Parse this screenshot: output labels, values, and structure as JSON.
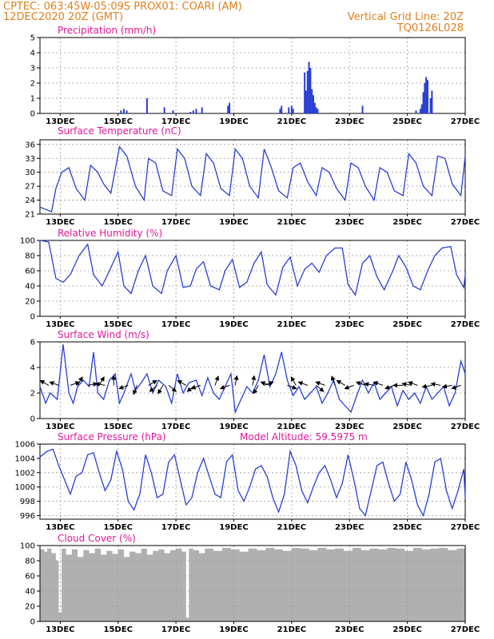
{
  "header": {
    "line1": "CPTEC:   063:45W-05:09S   PROX01: COARI (AM)",
    "line2": "12DEC2020 20Z (GMT)",
    "grid_note": "Vertical Grid Line: 20Z",
    "model_id": "TQ0126L028"
  },
  "colors": {
    "header": "#e0801c",
    "titles": "#e0189b",
    "line": "#2a3fd6",
    "bars": "#2a3fd6",
    "cloud": "#b0b0b0",
    "grid": "#999999"
  },
  "x_axis": {
    "range_days": [
      12.3,
      27.0
    ],
    "tick_days": [
      13,
      15,
      17,
      19,
      21,
      23,
      25,
      27
    ],
    "tick_labels": [
      "13DEC",
      "15DEC",
      "17DEC",
      "19DEC",
      "21DEC",
      "23DEC",
      "25DEC",
      "27DEC"
    ]
  },
  "chart_data": [
    {
      "type": "bar",
      "title": "Precipitation (mm/h)",
      "ylim": [
        0,
        5
      ],
      "yticks": [
        0,
        1,
        2,
        3,
        4,
        5
      ],
      "x": [
        15.1,
        15.2,
        15.3,
        16.0,
        16.6,
        16.9,
        17.5,
        17.6,
        17.7,
        17.9,
        18.8,
        18.85,
        20.6,
        20.65,
        20.9,
        21.0,
        21.05,
        21.45,
        21.5,
        21.55,
        21.6,
        21.65,
        21.7,
        21.75,
        21.8,
        21.85,
        21.9,
        23.45,
        25.3,
        25.45,
        25.5,
        25.55,
        25.6,
        25.65,
        25.7,
        25.8,
        25.85
      ],
      "values": [
        0.2,
        0.3,
        0.2,
        1.0,
        0.4,
        0.2,
        0.1,
        0.2,
        0.3,
        0.4,
        0.5,
        0.7,
        0.3,
        0.5,
        0.4,
        0.5,
        0.3,
        2.7,
        1.5,
        2.8,
        3.4,
        3.0,
        1.6,
        1.2,
        0.7,
        0.4,
        0.3,
        0.5,
        0.2,
        0.3,
        0.6,
        1.4,
        2.0,
        2.4,
        2.2,
        1.0,
        1.5
      ]
    },
    {
      "type": "line",
      "title": "Surface Temperature (nC)",
      "ylim": [
        21,
        37
      ],
      "yticks": [
        21,
        24,
        27,
        30,
        33,
        36
      ],
      "x": [
        12.3,
        12.7,
        12.85,
        13.05,
        13.3,
        13.55,
        13.85,
        14.05,
        14.3,
        14.5,
        14.75,
        15.05,
        15.3,
        15.6,
        15.9,
        16.05,
        16.3,
        16.55,
        16.85,
        17.05,
        17.3,
        17.55,
        17.85,
        18.05,
        18.3,
        18.55,
        18.85,
        19.05,
        19.3,
        19.55,
        19.85,
        20.05,
        20.3,
        20.55,
        20.85,
        21.05,
        21.3,
        21.55,
        21.85,
        22.05,
        22.3,
        22.55,
        22.85,
        23.05,
        23.3,
        23.55,
        23.85,
        24.05,
        24.3,
        24.55,
        24.85,
        25.05,
        25.3,
        25.55,
        25.85,
        26.05,
        26.3,
        26.55,
        26.85,
        27.0
      ],
      "values": [
        22.5,
        21.5,
        26.5,
        30.0,
        31.0,
        26.5,
        24.0,
        31.5,
        30.0,
        27.5,
        25.5,
        35.5,
        33.5,
        27.0,
        24.0,
        33.0,
        32.0,
        26.0,
        25.0,
        35.0,
        33.0,
        27.0,
        25.0,
        34.0,
        32.0,
        26.5,
        25.0,
        35.0,
        33.0,
        27.0,
        24.5,
        35.0,
        31.0,
        26.0,
        24.5,
        31.0,
        32.0,
        28.0,
        25.0,
        31.0,
        30.0,
        26.5,
        24.0,
        32.0,
        31.0,
        27.0,
        24.0,
        31.0,
        30.0,
        26.0,
        25.0,
        34.0,
        32.0,
        27.0,
        25.0,
        33.5,
        33.0,
        27.5,
        25.0,
        33.5
      ]
    },
    {
      "type": "line",
      "title": "Relative Humidity (%)",
      "ylim": [
        0,
        100
      ],
      "yticks": [
        0,
        20,
        40,
        60,
        80,
        100
      ],
      "x": [
        12.3,
        12.6,
        12.85,
        13.1,
        13.35,
        13.65,
        13.95,
        14.15,
        14.45,
        14.7,
        15.0,
        15.2,
        15.45,
        15.7,
        15.95,
        16.2,
        16.5,
        16.7,
        17.0,
        17.25,
        17.5,
        17.7,
        17.95,
        18.2,
        18.5,
        18.7,
        18.95,
        19.2,
        19.45,
        19.7,
        19.95,
        20.15,
        20.45,
        20.7,
        20.95,
        21.2,
        21.45,
        21.7,
        21.95,
        22.2,
        22.5,
        22.75,
        22.95,
        23.2,
        23.45,
        23.7,
        23.95,
        24.2,
        24.5,
        24.7,
        24.95,
        25.2,
        25.45,
        25.7,
        25.95,
        26.2,
        26.5,
        26.7,
        26.95,
        27.0
      ],
      "values": [
        100,
        98,
        50,
        45,
        55,
        80,
        95,
        55,
        40,
        60,
        85,
        40,
        30,
        60,
        80,
        40,
        30,
        60,
        80,
        38,
        40,
        62,
        72,
        40,
        35,
        60,
        75,
        38,
        45,
        70,
        85,
        42,
        28,
        65,
        78,
        40,
        62,
        70,
        58,
        80,
        90,
        90,
        42,
        28,
        70,
        80,
        52,
        35,
        60,
        80,
        65,
        40,
        35,
        60,
        80,
        90,
        92,
        55,
        38,
        55
      ]
    },
    {
      "type": "line",
      "title": "Surface Wind (m/s)",
      "ylim": [
        0,
        6
      ],
      "yticks": [
        0,
        2,
        4,
        6
      ],
      "x": [
        12.3,
        12.5,
        12.65,
        12.9,
        13.1,
        13.3,
        13.45,
        13.6,
        13.8,
        14.0,
        14.15,
        14.3,
        14.5,
        14.7,
        14.9,
        15.05,
        15.2,
        15.45,
        15.6,
        15.8,
        16.0,
        16.2,
        16.4,
        16.65,
        16.85,
        17.05,
        17.25,
        17.45,
        17.7,
        17.9,
        18.1,
        18.3,
        18.5,
        18.7,
        18.9,
        19.05,
        19.25,
        19.45,
        19.65,
        19.85,
        20.05,
        20.25,
        20.45,
        20.65,
        20.85,
        21.05,
        21.25,
        21.45,
        21.65,
        21.85,
        22.05,
        22.25,
        22.45,
        22.65,
        22.85,
        23.05,
        23.25,
        23.45,
        23.65,
        23.85,
        24.05,
        24.25,
        24.45,
        24.65,
        24.85,
        25.05,
        25.25,
        25.45,
        25.65,
        25.85,
        26.05,
        26.25,
        26.45,
        26.65,
        26.85,
        27.0
      ],
      "values": [
        2.5,
        1.2,
        2.0,
        1.5,
        5.8,
        2.0,
        1.2,
        2.5,
        3.0,
        2.5,
        5.2,
        2.0,
        1.5,
        3.0,
        3.5,
        1.2,
        2.0,
        3.5,
        2.2,
        2.8,
        3.5,
        2.0,
        3.0,
        2.5,
        1.2,
        3.5,
        2.0,
        2.8,
        3.0,
        1.8,
        3.2,
        2.0,
        1.5,
        2.5,
        3.5,
        0.5,
        1.5,
        2.5,
        2.0,
        3.0,
        5.0,
        2.5,
        3.5,
        5.2,
        3.0,
        1.8,
        2.5,
        1.5,
        2.0,
        2.5,
        1.2,
        2.0,
        3.0,
        1.5,
        1.0,
        0.5,
        1.8,
        3.0,
        2.0,
        2.8,
        1.5,
        2.0,
        2.5,
        1.0,
        2.2,
        1.5,
        2.0,
        1.2,
        2.5,
        1.5,
        2.0,
        2.5,
        1.0,
        2.0,
        4.5,
        3.5
      ],
      "vectors": {
        "x": [
          12.6,
          12.95,
          13.35,
          13.6,
          13.95,
          14.35,
          14.55,
          14.85,
          15.35,
          15.65,
          16.05,
          16.35,
          16.55,
          16.75,
          17.35,
          17.65,
          17.85,
          18.35,
          18.85,
          19.05,
          19.65,
          19.85,
          20.05,
          20.25,
          20.85,
          21.15,
          21.55,
          21.85,
          22.15,
          22.5,
          22.85,
          23.15,
          23.55,
          23.85,
          24.15,
          24.55,
          24.85,
          25.15,
          25.35,
          25.85,
          26.15,
          26.55,
          26.85
        ]
      }
    },
    {
      "type": "line",
      "title": "Surface Pressure (hPa)",
      "subtitle": "Model Altitude: 59.5975 m",
      "ylim": [
        995.5,
        1006
      ],
      "yticks": [
        996,
        998,
        1000,
        1002,
        1004,
        1006
      ],
      "x": [
        12.3,
        12.55,
        12.75,
        12.95,
        13.15,
        13.35,
        13.55,
        13.75,
        13.95,
        14.15,
        14.35,
        14.55,
        14.75,
        14.95,
        15.15,
        15.35,
        15.55,
        15.75,
        15.95,
        16.15,
        16.35,
        16.55,
        16.75,
        16.95,
        17.15,
        17.35,
        17.55,
        17.75,
        17.95,
        18.15,
        18.35,
        18.55,
        18.75,
        18.95,
        19.15,
        19.35,
        19.55,
        19.75,
        19.95,
        20.15,
        20.35,
        20.55,
        20.75,
        20.95,
        21.15,
        21.35,
        21.55,
        21.75,
        21.95,
        22.15,
        22.35,
        22.55,
        22.75,
        22.95,
        23.15,
        23.35,
        23.55,
        23.75,
        23.95,
        24.15,
        24.35,
        24.55,
        24.75,
        24.95,
        25.15,
        25.35,
        25.55,
        25.75,
        25.95,
        26.15,
        26.35,
        26.55,
        26.75,
        26.95,
        27.0
      ],
      "values": [
        1004.2,
        1005.0,
        1005.3,
        1003.0,
        1001.0,
        999.0,
        1001.5,
        1002.0,
        1004.5,
        1004.8,
        1002.0,
        999.5,
        1001.0,
        1005.0,
        1002.5,
        998.0,
        996.8,
        999.0,
        1004.5,
        1002.0,
        998.5,
        999.0,
        1003.5,
        1004.5,
        1001.0,
        997.5,
        998.5,
        1002.0,
        1004.0,
        1001.5,
        999.0,
        998.5,
        1003.5,
        1004.5,
        999.5,
        998.0,
        1000.0,
        1002.5,
        1003.0,
        1001.5,
        998.5,
        996.5,
        999.0,
        1005.0,
        1003.0,
        999.5,
        997.8,
        1000.0,
        1002.0,
        1003.0,
        1001.0,
        998.5,
        1000.5,
        1004.5,
        1001.0,
        997.0,
        996.0,
        999.5,
        1003.0,
        1003.5,
        1000.5,
        998.0,
        999.0,
        1003.5,
        1001.0,
        997.5,
        996.0,
        999.0,
        1003.5,
        1004.0,
        999.5,
        997.0,
        999.5,
        1002.5,
        998.5
      ]
    },
    {
      "type": "area",
      "title": "Cloud Cover (%)",
      "ylim": [
        0,
        100
      ],
      "yticks": [
        0,
        20,
        40,
        60,
        80,
        100
      ],
      "x": [
        12.3,
        12.45,
        12.55,
        12.7,
        12.85,
        12.95,
        13.05,
        13.2,
        13.4,
        13.6,
        13.8,
        14.0,
        14.2,
        14.4,
        14.6,
        14.8,
        15.0,
        15.2,
        15.4,
        15.6,
        15.8,
        16.0,
        16.2,
        16.4,
        16.6,
        16.8,
        17.0,
        17.2,
        17.35,
        17.45,
        17.6,
        17.8,
        18.0,
        18.3,
        18.6,
        18.9,
        19.2,
        19.5,
        19.8,
        20.1,
        20.4,
        20.7,
        21.0,
        21.3,
        21.6,
        21.9,
        22.2,
        22.5,
        22.8,
        23.1,
        23.4,
        23.7,
        24.0,
        24.3,
        24.6,
        24.9,
        25.2,
        25.5,
        25.8,
        26.1,
        26.4,
        26.7,
        27.0
      ],
      "values": [
        95,
        92,
        96,
        90,
        80,
        12,
        96,
        88,
        95,
        85,
        94,
        90,
        96,
        88,
        93,
        89,
        95,
        85,
        92,
        90,
        96,
        88,
        93,
        95,
        90,
        94,
        96,
        92,
        5,
        96,
        94,
        90,
        96,
        93,
        97,
        95,
        92,
        96,
        94,
        97,
        95,
        93,
        97,
        96,
        94,
        97,
        95,
        96,
        93,
        97,
        94,
        96,
        95,
        97,
        96,
        93,
        97,
        95,
        96,
        97,
        94,
        96,
        95
      ]
    }
  ]
}
